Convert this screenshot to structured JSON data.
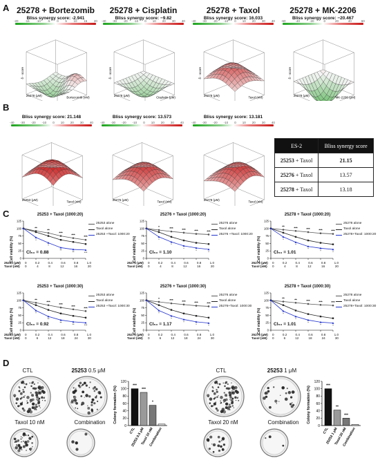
{
  "panels": {
    "A": "A",
    "B": "B",
    "C": "C",
    "D": "D"
  },
  "panel_a": {
    "plots": [
      {
        "title": "25278 + Bortezomib",
        "score": "Bliss synergy score: -2.941",
        "ticks": [
          "-20",
          "-15",
          "-10",
          "-5",
          "0",
          "5",
          "10",
          "15",
          "20"
        ],
        "xaxis": "Bortezomib (nM)",
        "yaxis": "25278 (μM)",
        "zaxis": "δ - score"
      },
      {
        "title": "25278 + Cisplatin",
        "score": "Bliss synergy score: −9.82",
        "ticks": [
          "-40",
          "-30",
          "-20",
          "-10",
          "0",
          "10",
          "20",
          "30",
          "40"
        ],
        "xaxis": "Cisplatin (μM)",
        "yaxis": "25278 (μM)",
        "zaxis": "δ - score"
      },
      {
        "title": "25278 + Taxol",
        "score": "Bliss synergy score: 16.033",
        "ticks": [
          "-40",
          "-30",
          "-20",
          "-10",
          "0",
          "10",
          "20",
          "30",
          "40"
        ],
        "xaxis": "Taxol (nM)",
        "yaxis": "25278 (μM)",
        "zaxis": "δ - score"
      },
      {
        "title": "25278 + MK-2206",
        "score": "Bliss synergy score: −20.467",
        "ticks": [
          "-60",
          "-40",
          "-20",
          "0",
          "20",
          "40",
          "60"
        ],
        "xaxis": "MK-2206 (μM)",
        "yaxis": "25278 (μM)",
        "zaxis": "δ - score"
      }
    ]
  },
  "panel_b": {
    "plots": [
      {
        "score": "Bliss synergy score: 21.148",
        "ticks": [
          "-40",
          "-30",
          "-20",
          "-10",
          "0",
          "10",
          "20",
          "30",
          "40"
        ],
        "xaxis": "Taxol (nM)",
        "yaxis": "25253 (μM)"
      },
      {
        "score": "Bliss synergy score: 13.573",
        "ticks": [
          "-40",
          "-30",
          "-20",
          "-10",
          "0",
          "10",
          "20",
          "30",
          "40"
        ],
        "xaxis": "Taxol (nM)",
        "yaxis": "25276 (μM)"
      },
      {
        "score": "Bliss synergy score: 13.181",
        "ticks": [
          "-40",
          "-30",
          "-20",
          "-10",
          "0",
          "10",
          "20",
          "30",
          "40"
        ],
        "xaxis": "Taxol (nM)",
        "yaxis": "25278 (μM)"
      }
    ],
    "table": {
      "headers": [
        "ES-2",
        "Bliss synergy score"
      ],
      "rows": [
        {
          "combo_bold": "25253",
          "combo_rest": " + Taxol",
          "score": "21.15"
        },
        {
          "combo_bold": "25276",
          "combo_rest": " + Taxol",
          "score": "13.57"
        },
        {
          "combo_bold": "25278",
          "combo_rest": " + Taxol",
          "score": "13.18"
        }
      ]
    }
  },
  "panel_c": {
    "ylabel": "Cell viability (%)",
    "plots": [
      {
        "title": "25253 + Taxol (1000:20)",
        "ci": "CI₅₀ = 0.88",
        "legend": [
          "25253 alone",
          "Taxol alone",
          "25253 +Taxol: 1000:20"
        ],
        "row1_label": "25253 (μM)",
        "row1": [
          "0",
          "0.2",
          "0.4",
          "0.6",
          "0.8",
          "1.0"
        ],
        "row2_label": "Taxol (nM)",
        "row2": [
          "0",
          "4",
          "8",
          "12",
          "16",
          "20"
        ],
        "sig_a": [
          "**",
          "**",
          "***",
          "***",
          "***"
        ],
        "sig_b": [
          "*",
          "*",
          "**",
          "**",
          "***"
        ]
      },
      {
        "title": "25276 + Taxol (1000:20)",
        "ci": "CI₅₀ = 1.10",
        "legend": [
          "25276 alone",
          "Taxol alone",
          "25276 +Taxol: 1000:20"
        ],
        "row1_label": "25276 (μM)",
        "row1": [
          "0",
          "0.2",
          "0.4",
          "0.6",
          "0.8",
          "1.0"
        ],
        "row2_label": "Taxol (nM)",
        "row2": [
          "0",
          "4",
          "8",
          "12",
          "16",
          "20"
        ],
        "sig_a": [
          "*",
          "***",
          "***",
          "***",
          "***"
        ],
        "sig_b": [
          "*",
          "*",
          "*",
          "*",
          "*"
        ]
      },
      {
        "title": "25278 + Taxol (1000:20)",
        "ci": "CI₅₀ = 1.01",
        "legend": [
          "25278 alone",
          "Taxol alone",
          "25278+Taxol: 1000:20"
        ],
        "row1_label": "25278 (μM)",
        "row1": [
          "0",
          "0.2",
          "0.4",
          "0.6",
          "0.8",
          "1.0"
        ],
        "row2_label": "Taxol (nM)",
        "row2": [
          "0",
          "4",
          "8",
          "12",
          "16",
          "20"
        ],
        "sig_a": [
          "**",
          "***",
          "***",
          "***",
          "***"
        ],
        "sig_b": [
          "*",
          "*",
          "*",
          "*",
          "*"
        ]
      },
      {
        "title": "25253 + Taxol (1000:30)",
        "ci": "CI₅₀ = 0.92",
        "legend": [
          "25253 alone",
          "Taxol alone",
          "25253 +Taxol: 1000:30"
        ],
        "row1_label": "25253 (μM)",
        "row1": [
          "0",
          "0.2",
          "0.4",
          "0.6",
          "0.8",
          "1.0"
        ],
        "row2_label": "Taxol (nM)",
        "row2": [
          "0",
          "6",
          "12",
          "18",
          "24",
          "30"
        ],
        "sig_a": [
          "**",
          "***",
          "***",
          "***",
          "***"
        ],
        "sig_b": [
          "*",
          "**",
          "**",
          "**",
          "***"
        ]
      },
      {
        "title": "25276 + Taxol (1000:30)",
        "ci": "CI₅₀ = 1.17",
        "legend": [
          "25276 alone",
          "Taxol alone",
          "25276+Taxol: 1000:30"
        ],
        "row1_label": "25276 (μM)",
        "row1": [
          "0",
          "0.2",
          "0.4",
          "0.6",
          "0.8",
          "1.0"
        ],
        "row2_label": "Taxol (nM)",
        "row2": [
          "0",
          "6",
          "12",
          "18",
          "24",
          "30"
        ],
        "sig_a": [
          "*",
          "***",
          "***",
          "***",
          "***"
        ],
        "sig_b": [
          "*",
          "*",
          "*",
          "*",
          "*"
        ]
      },
      {
        "title": "25278 + Taxol (1000:30)",
        "ci": "CI₅₀ = 1.01",
        "legend": [
          "25278 alone",
          "Taxol alone",
          "25278+Taxol: 1000:30"
        ],
        "row1_label": "25278 (μM)",
        "row1": [
          "0",
          "0.2",
          "0.4",
          "0.6",
          "0.8",
          "1.0"
        ],
        "row2_label": "Taxol (nM)",
        "row2": [
          "0",
          "6",
          "12",
          "18",
          "24",
          "30"
        ],
        "sig_a": [
          "**",
          "**",
          "***",
          "***",
          "***"
        ],
        "sig_b": [
          "*",
          "*",
          "*",
          "*",
          "*"
        ]
      }
    ]
  },
  "panel_d": {
    "left": {
      "labels": [
        "CTL",
        "0.5 μM",
        "Taxol 10 nM",
        "Combination"
      ],
      "label2_bold": "25253",
      "bar_ylabel": "Colony formation (%)",
      "yticks": [
        "0",
        "20",
        "40",
        "60",
        "80",
        "100",
        "120"
      ],
      "bars": [
        {
          "name": "CTL",
          "value": 100,
          "color": "#111111",
          "sig": "***"
        },
        {
          "name": "25253 0.5 μM",
          "value": 90,
          "color": "#9a9a9a",
          "sig": "***"
        },
        {
          "name": "Taxol 10 nM",
          "value": 55,
          "color": "#777777",
          "sig": "*"
        },
        {
          "name": "Combination",
          "value": 4,
          "color": "#dddddd",
          "sig": ""
        }
      ]
    },
    "right": {
      "labels": [
        "CTL",
        "1 μM",
        "Taxol 20 nM",
        "Combination"
      ],
      "label2_bold": "25253",
      "bar_ylabel": "Colony formation (%)",
      "yticks": [
        "0",
        "20",
        "40",
        "60",
        "80",
        "100",
        "120"
      ],
      "bars": [
        {
          "name": "CTL",
          "value": 100,
          "color": "#111111",
          "sig": "***"
        },
        {
          "name": "25253 1 μM",
          "value": 42,
          "color": "#9a9a9a",
          "sig": "**"
        },
        {
          "name": "Taxol 20 nM",
          "value": 20,
          "color": "#777777",
          "sig": "***"
        },
        {
          "name": "Combination",
          "value": 3,
          "color": "#dddddd",
          "sig": ""
        }
      ]
    }
  },
  "chart_data": [
    {
      "type": "bar",
      "title": "",
      "ylabel": "Colony formation (%)",
      "categories": [
        "CTL",
        "25253 0.5 μM",
        "Taxol 10 nM",
        "Combination"
      ],
      "values": [
        100,
        90,
        55,
        4
      ],
      "ylim": [
        0,
        120
      ]
    },
    {
      "type": "bar",
      "title": "",
      "ylabel": "Colony formation (%)",
      "categories": [
        "CTL",
        "25253 1 μM",
        "Taxol 20 nM",
        "Combination"
      ],
      "values": [
        100,
        42,
        20,
        3
      ],
      "ylim": [
        0,
        120
      ]
    },
    {
      "type": "line",
      "title": "25253 + Taxol (1000:20)",
      "ylabel": "Cell viability (%)",
      "ylim": [
        0,
        125
      ],
      "x": [
        0,
        1,
        2,
        3,
        4,
        5
      ],
      "series": [
        {
          "name": "25253 alone",
          "values": [
            100,
            92,
            85,
            75,
            68,
            62
          ]
        },
        {
          "name": "Taxol alone",
          "values": [
            100,
            88,
            75,
            62,
            55,
            48
          ]
        },
        {
          "name": "25253 +Taxol: 1000:20",
          "values": [
            100,
            70,
            52,
            36,
            30,
            28
          ]
        }
      ]
    },
    {
      "type": "line",
      "title": "25276 + Taxol (1000:20)",
      "ylabel": "Cell viability (%)",
      "ylim": [
        0,
        125
      ],
      "x": [
        0,
        1,
        2,
        3,
        4,
        5
      ],
      "series": [
        {
          "name": "25276 alone",
          "values": [
            100,
            95,
            90,
            86,
            82,
            80
          ]
        },
        {
          "name": "Taxol alone",
          "values": [
            100,
            88,
            72,
            60,
            52,
            48
          ]
        },
        {
          "name": "25276 +Taxol: 1000:20",
          "values": [
            100,
            72,
            55,
            42,
            35,
            30
          ]
        }
      ]
    },
    {
      "type": "line",
      "title": "25278 + Taxol (1000:20)",
      "ylabel": "Cell viability (%)",
      "ylim": [
        0,
        125
      ],
      "x": [
        0,
        1,
        2,
        3,
        4,
        5
      ],
      "series": [
        {
          "name": "25278 alone",
          "values": [
            100,
            96,
            92,
            88,
            84,
            82
          ]
        },
        {
          "name": "Taxol alone",
          "values": [
            100,
            86,
            72,
            60,
            52,
            47
          ]
        },
        {
          "name": "25278+Taxol: 1000:20",
          "values": [
            100,
            72,
            54,
            40,
            34,
            30
          ]
        }
      ]
    },
    {
      "type": "line",
      "title": "25253 + Taxol (1000:30)",
      "ylabel": "Cell viability (%)",
      "ylim": [
        0,
        125
      ],
      "x": [
        0,
        1,
        2,
        3,
        4,
        5
      ],
      "series": [
        {
          "name": "25253 alone",
          "values": [
            100,
            92,
            84,
            76,
            70,
            64
          ]
        },
        {
          "name": "Taxol alone",
          "values": [
            100,
            84,
            68,
            56,
            48,
            42
          ]
        },
        {
          "name": "25253 +Taxol: 1000:30",
          "values": [
            100,
            66,
            46,
            34,
            28,
            25
          ]
        }
      ]
    },
    {
      "type": "line",
      "title": "25276 + Taxol (1000:30)",
      "ylabel": "Cell viability (%)",
      "ylim": [
        0,
        125
      ],
      "x": [
        0,
        1,
        2,
        3,
        4,
        5
      ],
      "series": [
        {
          "name": "25276 alone",
          "values": [
            100,
            95,
            90,
            86,
            82,
            80
          ]
        },
        {
          "name": "Taxol alone",
          "values": [
            100,
            84,
            68,
            56,
            48,
            42
          ]
        },
        {
          "name": "25276+Taxol: 1000:30",
          "values": [
            100,
            66,
            48,
            36,
            28,
            24
          ]
        }
      ]
    },
    {
      "type": "line",
      "title": "25278 + Taxol (1000:30)",
      "ylabel": "Cell viability (%)",
      "ylim": [
        0,
        125
      ],
      "x": [
        0,
        1,
        2,
        3,
        4,
        5
      ],
      "series": [
        {
          "name": "25278 alone",
          "values": [
            100,
            96,
            92,
            88,
            85,
            83
          ]
        },
        {
          "name": "Taxol alone",
          "values": [
            100,
            84,
            66,
            54,
            46,
            40
          ]
        },
        {
          "name": "25278+Taxol: 1000:30",
          "values": [
            100,
            64,
            46,
            34,
            27,
            24
          ]
        }
      ]
    }
  ]
}
